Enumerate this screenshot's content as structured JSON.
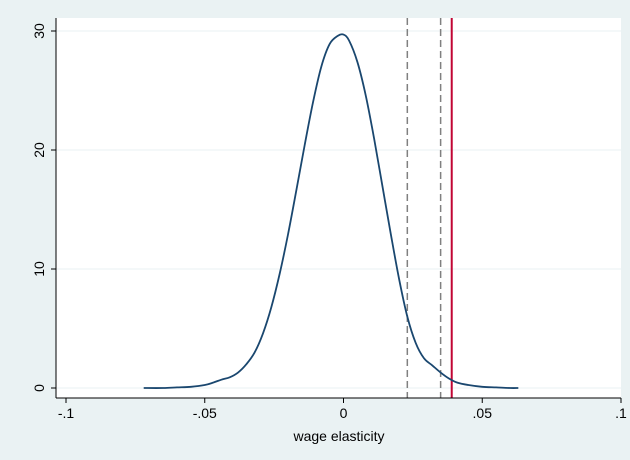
{
  "chart_data": {
    "type": "line",
    "title": "",
    "xlabel": "wage elasticity",
    "ylabel": "",
    "xlim": [
      -0.1,
      0.1
    ],
    "ylim": [
      0,
      30
    ],
    "x_ticks": [
      -0.1,
      -0.05,
      0,
      0.05,
      0.1
    ],
    "x_tick_labels": [
      "-.1",
      "-.05",
      "0",
      ".05",
      ".1"
    ],
    "y_ticks": [
      0,
      10,
      20,
      30
    ],
    "y_tick_labels": [
      "0",
      "10",
      "20",
      "30"
    ],
    "grid": true,
    "legend": "none",
    "series": [
      {
        "color": "#1a476f",
        "x": [
          -0.072,
          -0.065,
          -0.06,
          -0.055,
          -0.05,
          -0.047,
          -0.044,
          -0.041,
          -0.038,
          -0.035,
          -0.032,
          -0.029,
          -0.026,
          -0.023,
          -0.02,
          -0.017,
          -0.014,
          -0.011,
          -0.008,
          -0.005,
          -0.002,
          0,
          0.002,
          0.005,
          0.008,
          0.011,
          0.014,
          0.017,
          0.02,
          0.023,
          0.026,
          0.029,
          0.032,
          0.035,
          0.038,
          0.041,
          0.045,
          0.05,
          0.055,
          0.06,
          0.063
        ],
        "y": [
          0,
          0,
          0.05,
          0.1,
          0.25,
          0.45,
          0.7,
          0.9,
          1.3,
          2.0,
          3.0,
          4.6,
          6.8,
          9.6,
          12.9,
          16.6,
          20.4,
          24.0,
          27.0,
          28.9,
          29.6,
          29.7,
          29.2,
          27.4,
          24.6,
          21.0,
          17.0,
          13.0,
          9.2,
          6.0,
          3.8,
          2.5,
          1.9,
          1.3,
          0.8,
          0.45,
          0.25,
          0.1,
          0.05,
          0,
          0
        ]
      }
    ],
    "reference_lines": [
      {
        "x": 0.023,
        "style": "dashed",
        "color": "#808080"
      },
      {
        "x": 0.035,
        "style": "dashed",
        "color": "#808080"
      },
      {
        "x": 0.039,
        "style": "solid",
        "color": "#c10534"
      }
    ],
    "plot_background": "#ffffff",
    "page_background": "#eaf2f3",
    "grid_color": "#eaf2f3"
  }
}
